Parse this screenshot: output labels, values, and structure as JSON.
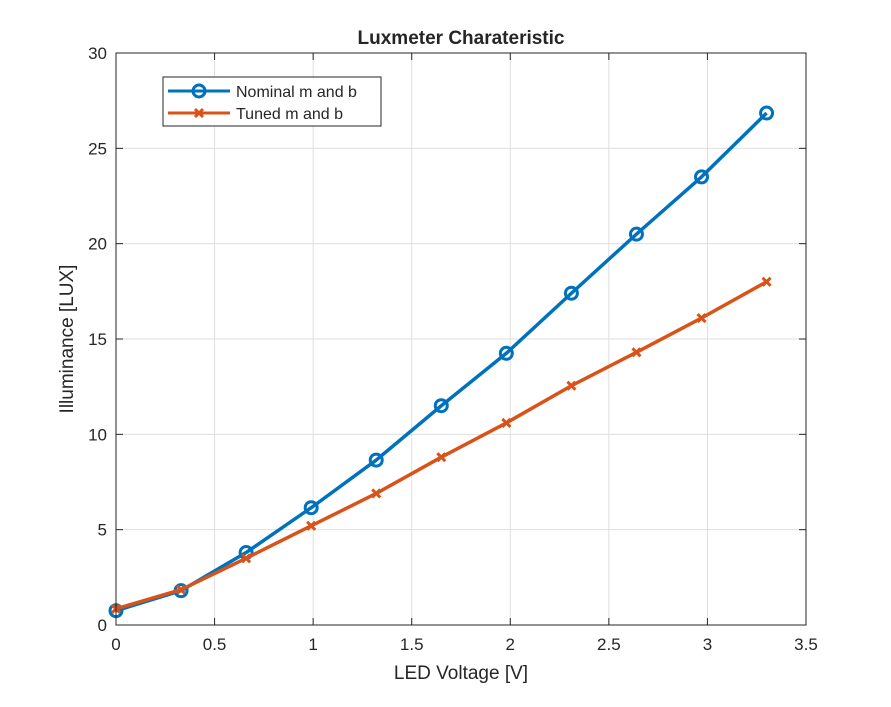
{
  "chart_data": {
    "type": "line",
    "title": "Luxmeter Charateristic",
    "xlabel": "LED Voltage [V]",
    "ylabel": "Illuminance [LUX]",
    "xlim": [
      0,
      3.5
    ],
    "ylim": [
      0,
      30
    ],
    "xticks": [
      0,
      0.5,
      1,
      1.5,
      2,
      2.5,
      3,
      3.5
    ],
    "xtick_labels": [
      "0",
      "0.5",
      "1",
      "1.5",
      "2",
      "2.5",
      "3",
      "3.5"
    ],
    "yticks": [
      0,
      5,
      10,
      15,
      20,
      25,
      30
    ],
    "ytick_labels": [
      "0",
      "5",
      "10",
      "15",
      "20",
      "25",
      "30"
    ],
    "grid": true,
    "legend_position": "top-left",
    "x": [
      0,
      0.33,
      0.66,
      0.99,
      1.32,
      1.65,
      1.98,
      2.31,
      2.64,
      2.97,
      3.3
    ],
    "series": [
      {
        "name": "Nominal m and b",
        "color": "#0072BD",
        "marker": "circle",
        "values": [
          0.75,
          1.8,
          3.8,
          6.15,
          8.65,
          11.5,
          14.25,
          17.4,
          20.5,
          23.5,
          26.85
        ]
      },
      {
        "name": "Tuned m and b",
        "color": "#D95319",
        "marker": "x",
        "values": [
          0.85,
          1.85,
          3.5,
          5.2,
          6.9,
          8.8,
          10.6,
          12.55,
          14.3,
          16.1,
          18.0
        ]
      }
    ]
  }
}
